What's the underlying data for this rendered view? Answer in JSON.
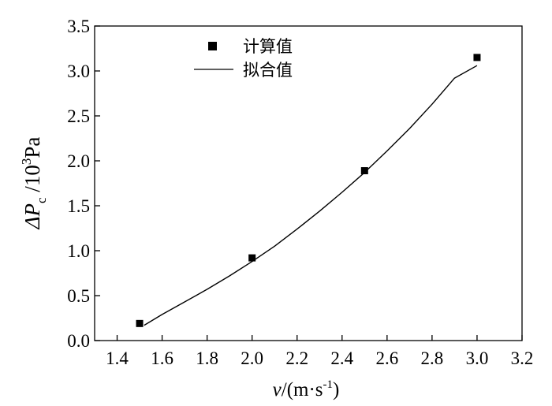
{
  "chart_data": {
    "type": "scatter",
    "xlabel": {
      "var": "v",
      "rest": "/(m·s",
      "sup": "-1",
      "close": ")"
    },
    "ylabel": {
      "prefix": "ΔP",
      "sub": "c",
      "mid": " /10",
      "sup": "3",
      "unit": "Pa"
    },
    "xlim": [
      1.3,
      3.2
    ],
    "ylim": [
      0.0,
      3.5
    ],
    "x_ticks": [
      "1.4",
      "1.6",
      "1.8",
      "2.0",
      "2.2",
      "2.4",
      "2.6",
      "2.8",
      "3.0",
      "3.2"
    ],
    "y_ticks": [
      "0.0",
      "0.5",
      "1.0",
      "1.5",
      "2.0",
      "2.5",
      "3.0",
      "3.5"
    ],
    "grid": false,
    "legend_position": "top-center",
    "series": [
      {
        "name": "计算值",
        "kind": "scatter",
        "marker": "square",
        "color": "#000000",
        "x": [
          1.5,
          2.0,
          2.5,
          3.0
        ],
        "y": [
          0.19,
          0.92,
          1.89,
          3.15
        ]
      },
      {
        "name": "拟合值",
        "kind": "line",
        "color": "#000000",
        "x": [
          1.52,
          1.6,
          1.7,
          1.8,
          1.9,
          2.0,
          2.1,
          2.2,
          2.3,
          2.4,
          2.5,
          2.6,
          2.7,
          2.8,
          2.9,
          3.0
        ],
        "y": [
          0.17,
          0.29,
          0.43,
          0.57,
          0.72,
          0.88,
          1.05,
          1.24,
          1.44,
          1.65,
          1.87,
          2.11,
          2.36,
          2.63,
          2.92,
          3.06
        ]
      }
    ]
  }
}
